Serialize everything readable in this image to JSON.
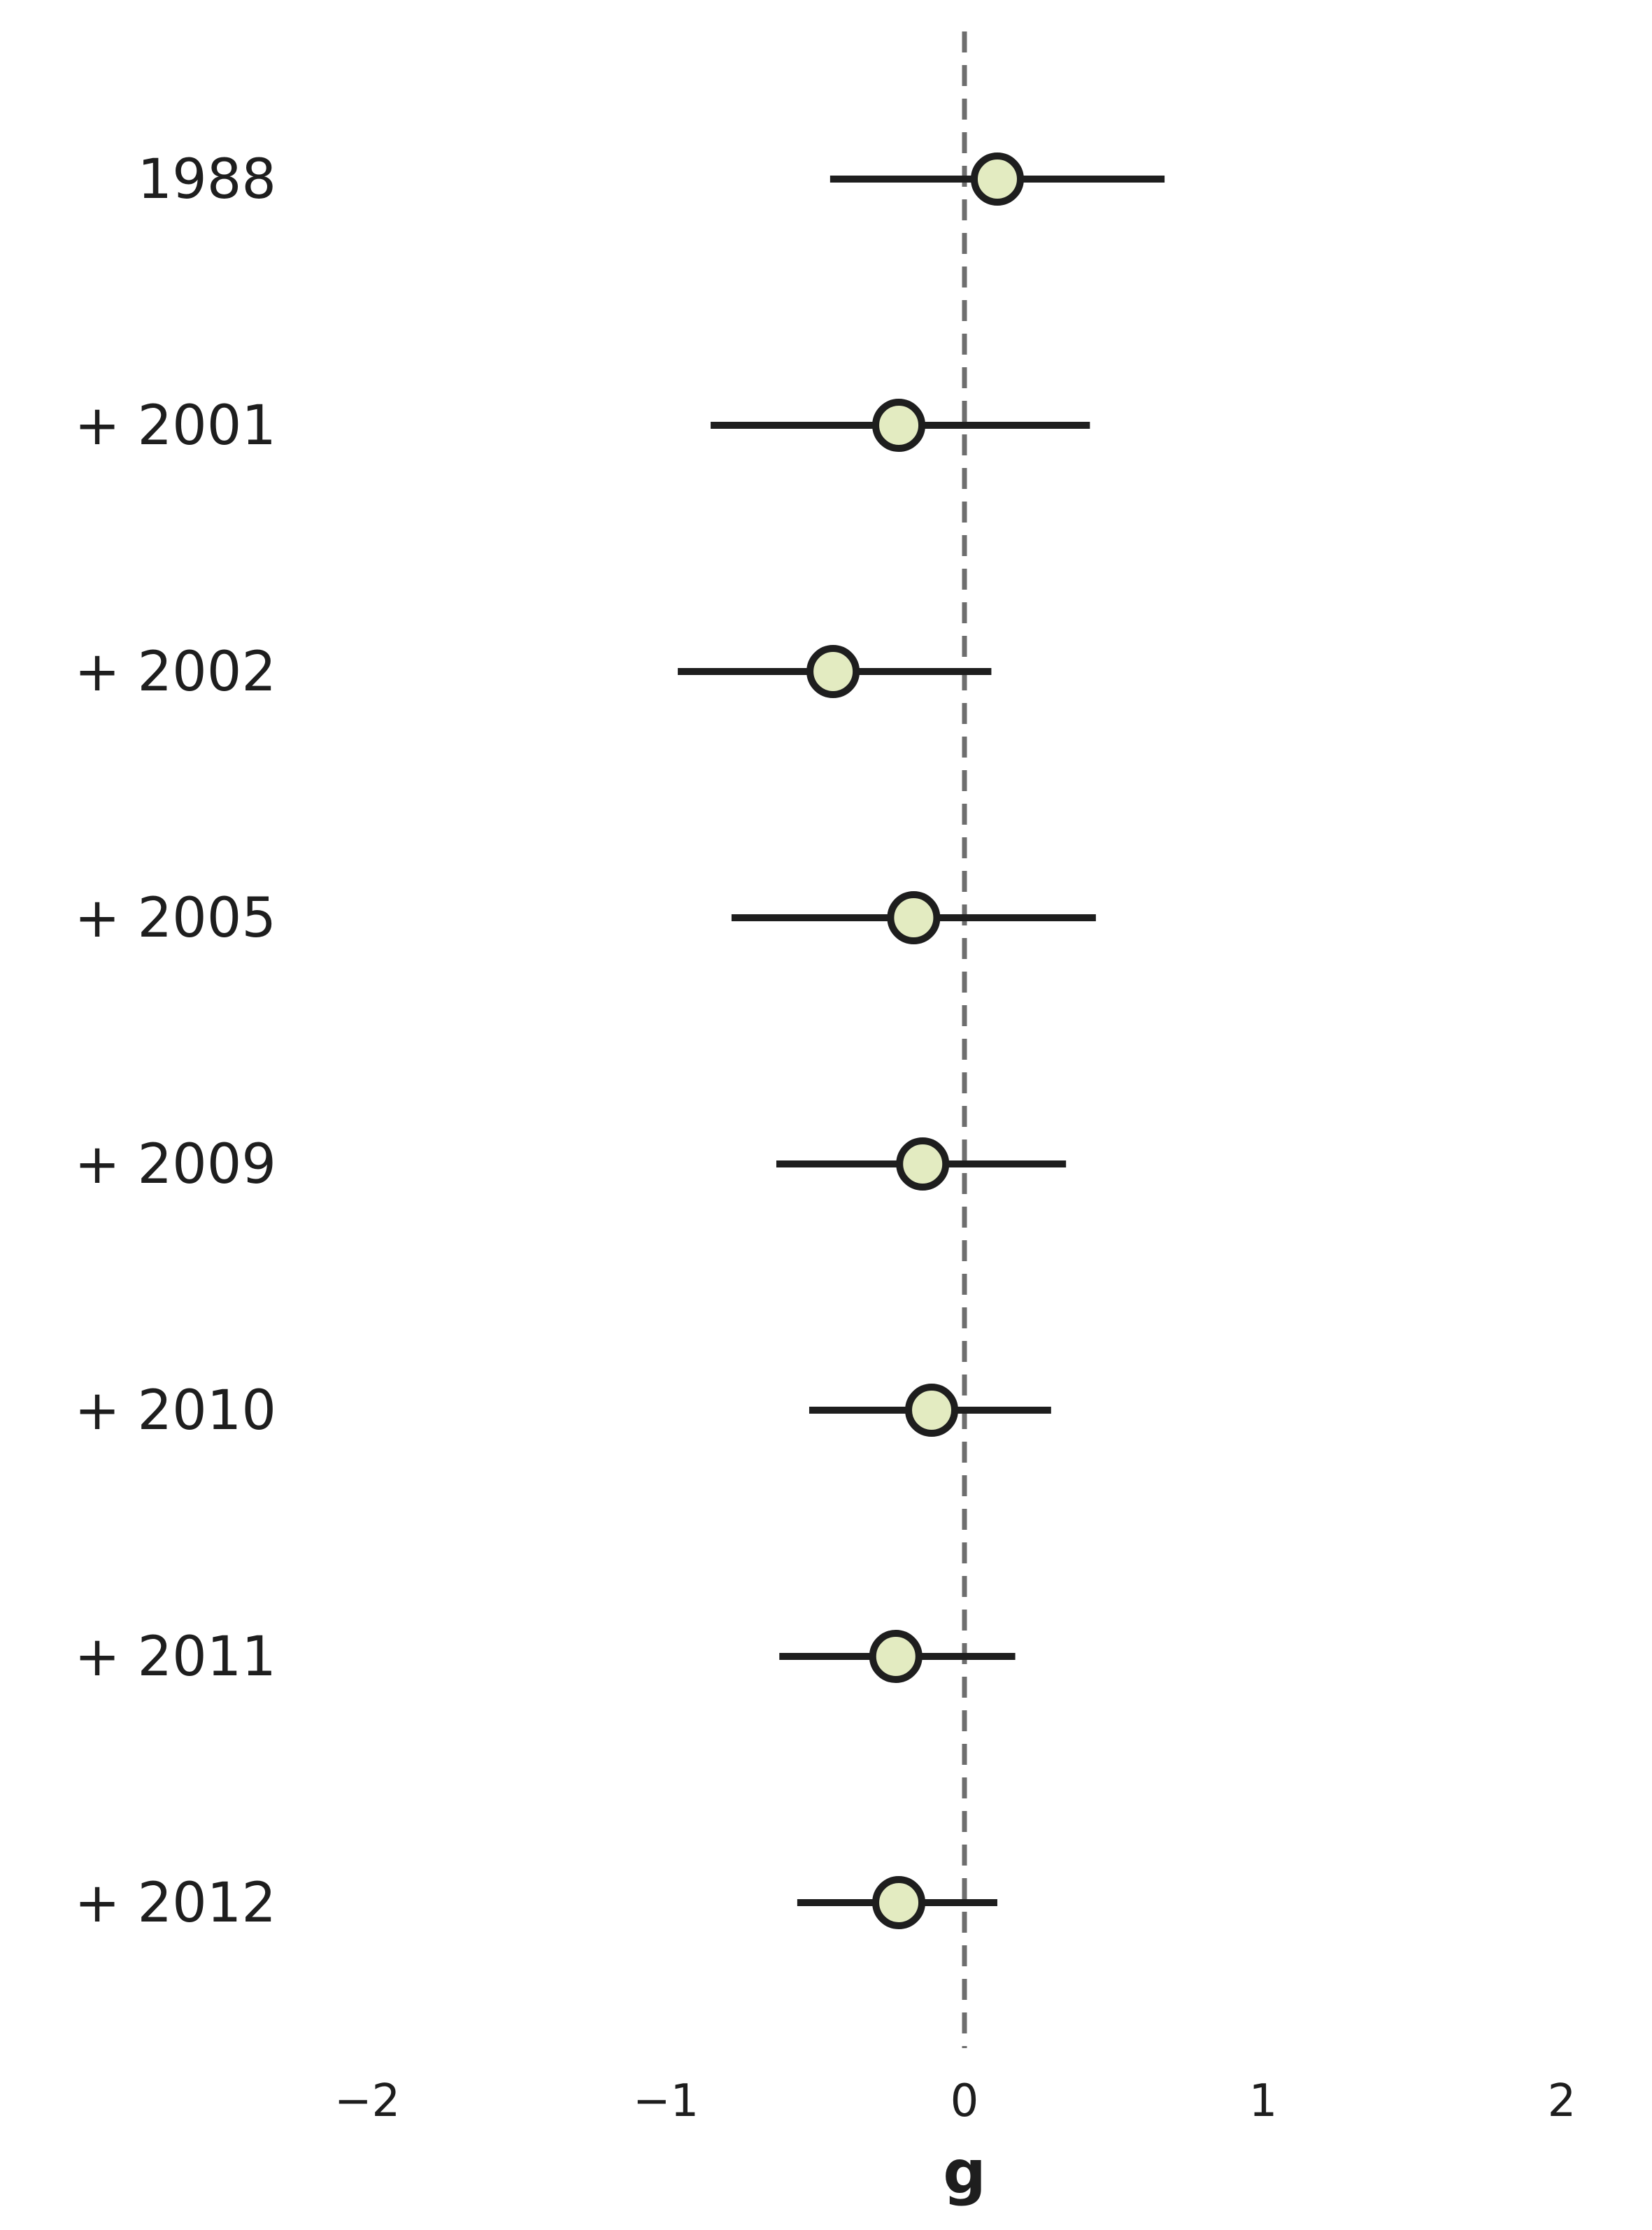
{
  "chart_data": {
    "type": "forest",
    "xlabel": "g",
    "xlim": [
      -2,
      2
    ],
    "xticks": [
      -2,
      -1,
      0,
      1,
      2
    ],
    "xtick_labels": [
      "−2",
      "−1",
      "0",
      "1",
      "2"
    ],
    "reference_line": 0,
    "categories": [
      "1988",
      "+ 2001",
      "+ 2002",
      "+ 2005",
      "+ 2009",
      "+ 2010",
      "+ 2011",
      "+ 2012"
    ],
    "estimates": [
      0.11,
      -0.22,
      -0.44,
      -0.17,
      -0.14,
      -0.11,
      -0.23,
      -0.22
    ],
    "ci_lower": [
      -0.45,
      -0.85,
      -0.96,
      -0.78,
      -0.63,
      -0.52,
      -0.62,
      -0.56
    ],
    "ci_upper": [
      0.67,
      0.42,
      0.09,
      0.44,
      0.34,
      0.29,
      0.17,
      0.11
    ],
    "grid": false,
    "colors": {
      "marker_fill": "#e3ebc1",
      "marker_stroke": "#1e1e1e",
      "whisker": "#1e1e1e",
      "reference_line": "#6e6e6e"
    }
  }
}
